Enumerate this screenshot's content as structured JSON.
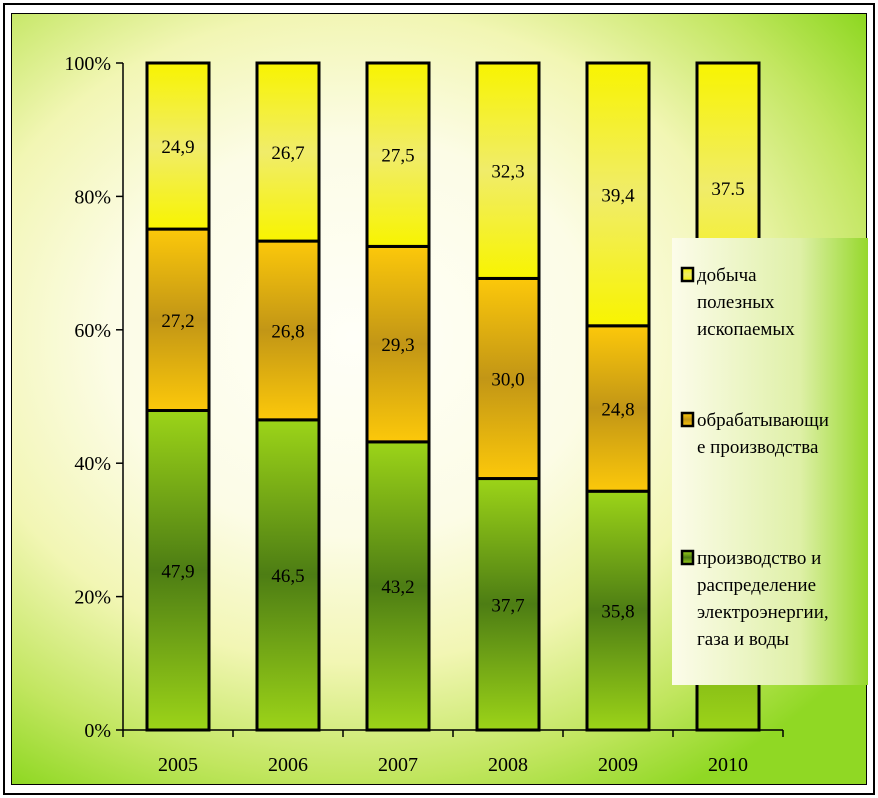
{
  "chart_data": {
    "type": "bar",
    "stacked": true,
    "percent_stacked": true,
    "categories": [
      "2005",
      "2006",
      "2007",
      "2008",
      "2009",
      "2010"
    ],
    "series": [
      {
        "name": "производство и распределение электроэнергии, газа и воды",
        "legend_lines": [
          "производство и",
          "распределение",
          "электроэнергии,",
          "газа и воды"
        ],
        "color": "#7cbf1e",
        "values": [
          47.9,
          46.5,
          43.2,
          37.7,
          35.8,
          null
        ],
        "labels": [
          "47,9",
          "46,5",
          "43,2",
          "37,7",
          "35,8",
          ""
        ]
      },
      {
        "name": "обрабатывающие производства",
        "legend_lines": [
          "обрабатывающи",
          "е производства"
        ],
        "color": "#f2b310",
        "values": [
          27.2,
          26.8,
          29.3,
          30.0,
          24.8,
          null
        ],
        "labels": [
          "27,2",
          "26,8",
          "29,3",
          "30,0",
          "24,8",
          ""
        ]
      },
      {
        "name": "добыча полезных ископаемых",
        "legend_lines": [
          "добыча",
          "полезных",
          "ископаемых"
        ],
        "color": "#f4f010",
        "values": [
          24.9,
          26.7,
          27.5,
          32.3,
          39.4,
          37.5
        ],
        "labels": [
          "24,9",
          "26,7",
          "27,5",
          "32,3",
          "39,4",
          "37.5"
        ]
      }
    ],
    "yticks": [
      "0%",
      "20%",
      "40%",
      "60%",
      "80%",
      "100%"
    ],
    "ylim": [
      0,
      100
    ],
    "legend": "right",
    "grid": false,
    "title": "",
    "xlabel": "",
    "ylabel": ""
  }
}
